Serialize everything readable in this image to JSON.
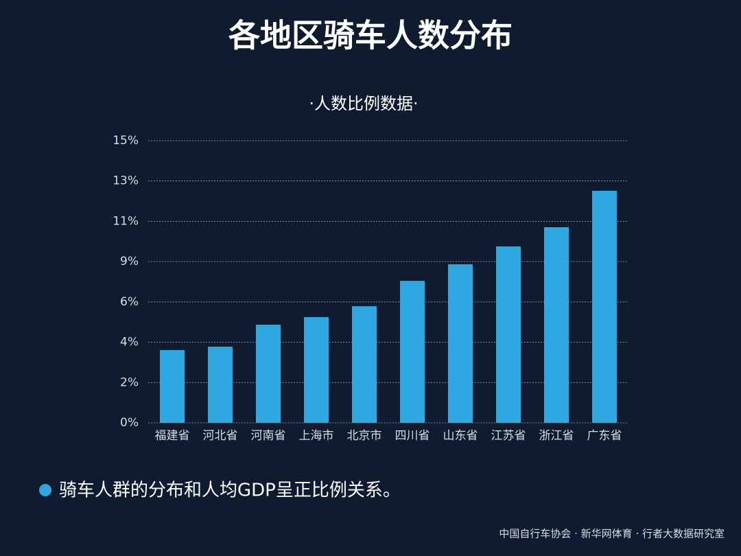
{
  "chart_data": {
    "type": "bar",
    "title": "各地区骑车人数分布",
    "subtitle": "·人数比例数据·",
    "categories": [
      "福建省",
      "河北省",
      "河南省",
      "上海市",
      "北京市",
      "四川省",
      "山东省",
      "江苏省",
      "浙江省",
      "广东省"
    ],
    "values": [
      3.87,
      4.05,
      5.22,
      5.62,
      6.2,
      7.55,
      8.43,
      9.38,
      10.4,
      12.34
    ],
    "color": "#2fa7e0",
    "ylim": [
      0,
      15
    ],
    "yticks": [
      {
        "value": 0,
        "label": "0%"
      },
      {
        "value": 2.14,
        "label": "2%"
      },
      {
        "value": 4.29,
        "label": "4%"
      },
      {
        "value": 6.43,
        "label": "6%"
      },
      {
        "value": 8.57,
        "label": "9%"
      },
      {
        "value": 10.71,
        "label": "11%"
      },
      {
        "value": 12.86,
        "label": "13%"
      },
      {
        "value": 15,
        "label": "15%"
      }
    ],
    "grid": true,
    "note": "骑车人群的分布和人均GDP呈正比例关系。",
    "source": "中国自行车协会 · 新华网体育 · 行者大数据研究室"
  }
}
